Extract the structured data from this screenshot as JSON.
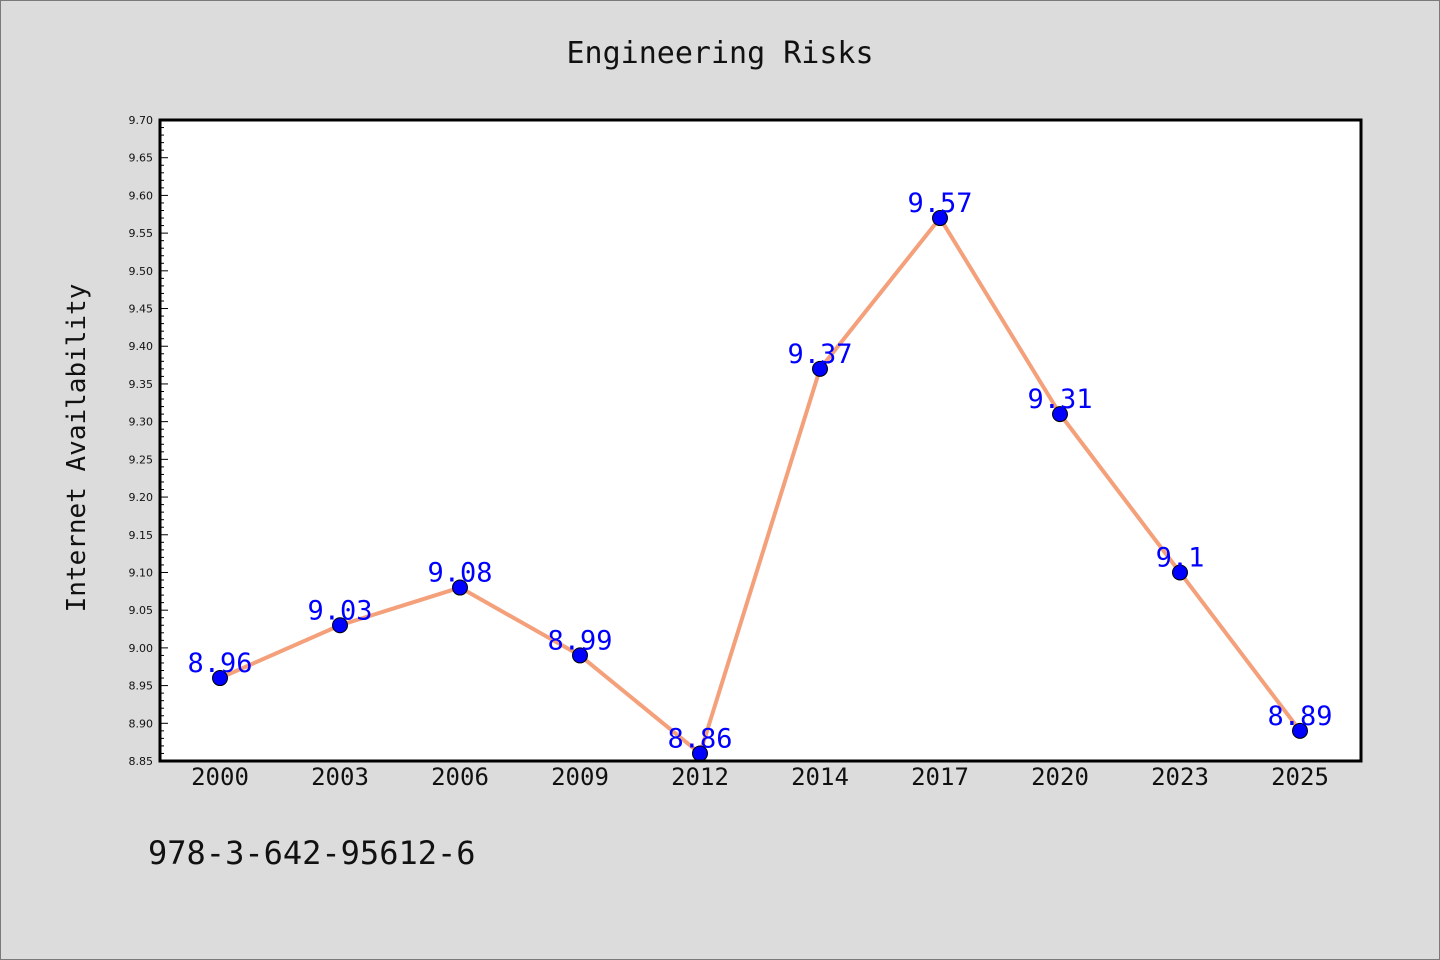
{
  "chart_data": {
    "type": "line",
    "title": "Engineering Risks",
    "xlabel": "",
    "ylabel": "Internet Availability",
    "categories": [
      "2000",
      "2003",
      "2006",
      "2009",
      "2012",
      "2014",
      "2017",
      "2020",
      "2023",
      "2025"
    ],
    "values": [
      8.96,
      9.03,
      9.08,
      8.99,
      8.86,
      9.37,
      9.57,
      9.31,
      9.1,
      8.89
    ],
    "data_labels": [
      "8.96",
      "9.03",
      "9.08",
      "8.99",
      "8.86",
      "9.37",
      "9.57",
      "9.31",
      "9.1",
      "8.89"
    ],
    "ylim": [
      8.85,
      9.7
    ],
    "yticks": [
      "8.85",
      "8.90",
      "8.95",
      "9.00",
      "9.05",
      "9.10",
      "9.15",
      "9.20",
      "9.25",
      "9.30",
      "9.35",
      "9.40",
      "9.45",
      "9.50",
      "9.55",
      "9.60",
      "9.65",
      "9.70"
    ],
    "grid": false,
    "line_color": "#f4a07a",
    "marker_color": "#0000ff",
    "label_color": "#0000ff"
  },
  "caption": "978-3-642-95612-6",
  "colors": {
    "background": "#dcdcdc",
    "plot_background": "#ffffff"
  }
}
